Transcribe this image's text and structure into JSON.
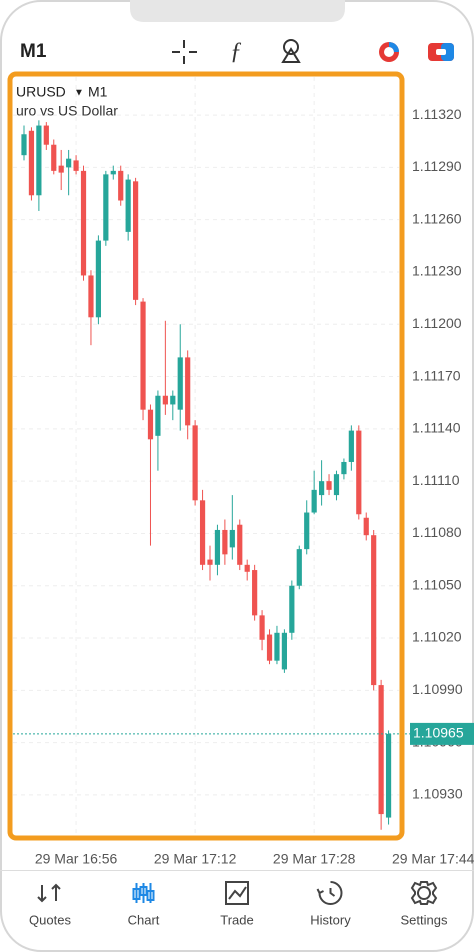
{
  "top_bar": {
    "timeframe": "M1"
  },
  "chart_data": {
    "type": "candlestick",
    "symbol": "URUSD",
    "timeframe": "M1",
    "description": "uro vs US Dollar",
    "up_color": "#26a69a",
    "down_color": "#ef5350",
    "grid": true,
    "categories": [
      null,
      null,
      null,
      null,
      null,
      null,
      null,
      null,
      null,
      null,
      null,
      null,
      null,
      null,
      null,
      null,
      null,
      null,
      null,
      null,
      null,
      null,
      null,
      null,
      null,
      null,
      null,
      null,
      null,
      null,
      null,
      null,
      null,
      null,
      null,
      null,
      null,
      null,
      null,
      null,
      null,
      null,
      null,
      null,
      null,
      null,
      null,
      null,
      null,
      null
    ],
    "open": [
      1.11297,
      1.11311,
      1.11274,
      1.11314,
      1.11303,
      1.11291,
      1.1129,
      1.11294,
      1.11288,
      1.11228,
      1.11204,
      1.11248,
      1.11286,
      1.11288,
      1.11253,
      1.11282,
      1.11213,
      1.11151,
      1.11136,
      1.11159,
      1.11154,
      1.11151,
      1.11181,
      1.11142,
      1.11099,
      1.11065,
      1.11062,
      1.11082,
      1.11072,
      1.11085,
      1.11062,
      1.11059,
      1.11033,
      1.11022,
      1.11007,
      1.11002,
      1.11023,
      1.1105,
      1.11071,
      1.11092,
      1.11102,
      1.1111,
      1.11102,
      1.11114,
      1.11121,
      1.11139,
      1.11089,
      1.11079,
      1.10993,
      1.10917
    ],
    "high": [
      1.11314,
      1.11313,
      1.11317,
      1.11316,
      1.11306,
      1.113,
      1.113,
      1.11297,
      1.11291,
      1.11231,
      1.11251,
      1.11288,
      1.11291,
      1.11291,
      1.11286,
      1.11284,
      1.11215,
      1.11154,
      1.11162,
      1.11202,
      1.11162,
      1.112,
      1.11185,
      1.11145,
      1.11105,
      1.11073,
      1.11085,
      1.11088,
      1.11102,
      1.11088,
      1.11065,
      1.11062,
      1.11036,
      1.11025,
      1.11027,
      1.11025,
      1.11053,
      1.11073,
      1.11099,
      1.11116,
      1.11122,
      1.11114,
      1.11116,
      1.11123,
      1.11142,
      1.11142,
      1.11092,
      1.11082,
      1.10996,
      1.10967
    ],
    "low": [
      1.11294,
      1.11271,
      1.11265,
      1.113,
      1.11286,
      1.11277,
      1.11274,
      1.11286,
      1.11225,
      1.11188,
      1.112,
      1.11245,
      1.11283,
      1.11268,
      1.11248,
      1.11211,
      1.11145,
      1.11073,
      1.11116,
      1.11148,
      1.11145,
      1.11139,
      1.11134,
      1.11096,
      1.11059,
      1.11053,
      1.11056,
      1.11062,
      1.11065,
      1.11059,
      1.11053,
      1.1103,
      1.11013,
      1.11005,
      1.11005,
      1.11,
      1.11019,
      1.11048,
      1.11068,
      1.11091,
      1.11096,
      1.11102,
      1.11099,
      1.11111,
      1.11116,
      1.11088,
      1.11076,
      1.1099,
      1.1091,
      1.10913
    ],
    "close": [
      1.11309,
      1.11274,
      1.11314,
      1.11303,
      1.11288,
      1.11287,
      1.11295,
      1.11288,
      1.11228,
      1.11204,
      1.11248,
      1.11286,
      1.11288,
      1.11271,
      1.11283,
      1.11214,
      1.11151,
      1.11134,
      1.11159,
      1.11154,
      1.11159,
      1.11181,
      1.11142,
      1.11099,
      1.11062,
      1.11062,
      1.11082,
      1.11068,
      1.11082,
      1.11062,
      1.11058,
      1.11033,
      1.11019,
      1.11007,
      1.11023,
      1.11023,
      1.1105,
      1.11071,
      1.11092,
      1.11105,
      1.1111,
      1.11105,
      1.11114,
      1.11121,
      1.11139,
      1.11091,
      1.11079,
      1.10993,
      1.10919,
      1.10965
    ],
    "ylim": [
      1.10907,
      1.11343
    ],
    "yticks": [
      {
        "value": 1.1132,
        "label": "1.11320"
      },
      {
        "value": 1.1129,
        "label": "1.11290"
      },
      {
        "value": 1.1126,
        "label": "1.11260"
      },
      {
        "value": 1.1123,
        "label": "1.11230"
      },
      {
        "value": 1.112,
        "label": "1.11200"
      },
      {
        "value": 1.1117,
        "label": "1.11170"
      },
      {
        "value": 1.1114,
        "label": "1.11140"
      },
      {
        "value": 1.1111,
        "label": "1.11110"
      },
      {
        "value": 1.1108,
        "label": "1.11080"
      },
      {
        "value": 1.1105,
        "label": "1.11050"
      },
      {
        "value": 1.1102,
        "label": "1.11020"
      },
      {
        "value": 1.1099,
        "label": "1.10990"
      },
      {
        "value": 1.1096,
        "label": "1.10960"
      },
      {
        "value": 1.1093,
        "label": "1.10930"
      }
    ],
    "xticks": [
      {
        "value": 7,
        "label": "29 Mar 16:56"
      },
      {
        "value": 23,
        "label": "29 Mar 17:12"
      },
      {
        "value": 39,
        "label": "29 Mar 17:28"
      },
      {
        "value": 55,
        "label": "29 Mar 17:44"
      }
    ],
    "last_price": 1.10965
  },
  "nav": {
    "items": [
      "Quotes",
      "Chart",
      "Trade",
      "History",
      "Settings"
    ],
    "active": 1
  }
}
